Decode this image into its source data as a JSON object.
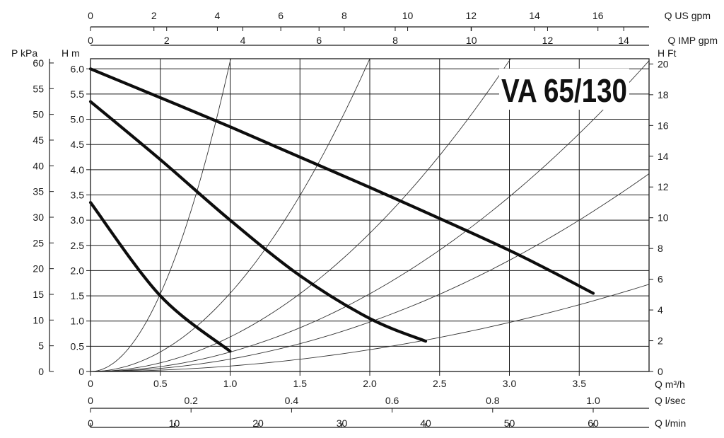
{
  "chart_data": {
    "type": "line",
    "title": "VA 65/130",
    "x": {
      "label": "Q m³/h",
      "range": [
        0,
        4.0
      ],
      "ticks": [
        0,
        0.5,
        1.0,
        1.5,
        2.0,
        2.5,
        3.0,
        3.5
      ],
      "tick_labels": [
        "0",
        "0.5",
        "1.0",
        "1.5",
        "2.0",
        "2.5",
        "3.0",
        "3.5"
      ]
    },
    "y": {
      "label": "H m",
      "range": [
        0,
        6.2
      ],
      "ticks": [
        0,
        0.5,
        1.0,
        1.5,
        2.0,
        2.5,
        3.0,
        3.5,
        4.0,
        4.5,
        5.0,
        5.5,
        6.0
      ],
      "tick_labels": [
        "0",
        "0.5",
        "1.0",
        "1.5",
        "2.0",
        "2.5",
        "3.0",
        "3.5",
        "4.0",
        "4.5",
        "5.0",
        "5.5",
        "6.0"
      ]
    },
    "secondary_axes": {
      "left_outer": {
        "label": "P kPa",
        "ticks": [
          0,
          5,
          10,
          15,
          20,
          25,
          30,
          35,
          40,
          45,
          50,
          55,
          60
        ]
      },
      "right": {
        "label": "H Ft",
        "ticks": [
          0,
          2,
          4,
          6,
          8,
          10,
          12,
          14,
          16,
          18,
          20
        ]
      },
      "top1": {
        "label": "Q US gpm",
        "ticks": [
          0,
          2,
          4,
          6,
          8,
          10,
          12,
          14,
          16
        ]
      },
      "top2": {
        "label": "Q IMP gpm",
        "ticks": [
          0,
          2,
          4,
          6,
          8,
          10,
          12,
          14
        ]
      },
      "bottom2": {
        "label": "Q l/sec",
        "ticks": [
          "0",
          "0.2",
          "0.4",
          "0.6",
          "0.8",
          "1.0"
        ]
      },
      "bottom3": {
        "label": "Q l/min",
        "ticks": [
          0,
          10,
          20,
          30,
          40,
          50,
          60
        ]
      }
    },
    "grid": true,
    "series": [
      {
        "x": [
          0,
          1.0,
          2.0,
          3.0,
          3.6
        ],
        "y": [
          6.0,
          4.85,
          3.65,
          2.4,
          1.55
        ]
      },
      {
        "x": [
          0,
          0.5,
          1.0,
          1.5,
          2.0,
          2.4
        ],
        "y": [
          5.35,
          4.2,
          3.0,
          1.9,
          1.05,
          0.6
        ]
      },
      {
        "x": [
          0,
          0.5,
          1.0
        ],
        "y": [
          3.35,
          1.5,
          0.4
        ]
      }
    ],
    "system_curves": [
      {
        "k": 6.15
      },
      {
        "k": 1.55
      },
      {
        "k": 0.685
      },
      {
        "k": 0.385
      },
      {
        "k": 0.245
      },
      {
        "k": 0.108
      }
    ]
  }
}
